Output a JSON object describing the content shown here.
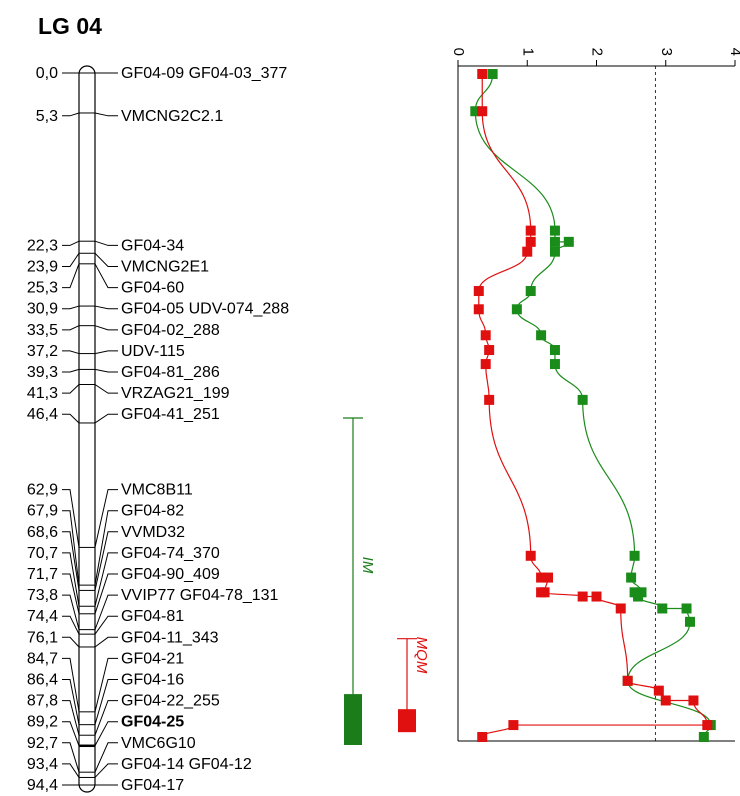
{
  "title": "LG 04",
  "chart_data": {
    "type": "line",
    "linkage_group": "LG 04",
    "markers": [
      {
        "pos": "0,0",
        "cm": 0.0,
        "label": "GF04-09  GF04-03_377"
      },
      {
        "pos": "5,3",
        "cm": 5.3,
        "label": "VMCNG2C2.1"
      },
      {
        "pos": "22,3",
        "cm": 22.3,
        "label": "GF04-34"
      },
      {
        "pos": "23,9",
        "cm": 23.9,
        "label": "VMCNG2E1"
      },
      {
        "pos": "25,3",
        "cm": 25.3,
        "label": "GF04-60"
      },
      {
        "pos": "30,9",
        "cm": 30.9,
        "label": "GF04-05  UDV-074_288"
      },
      {
        "pos": "33,5",
        "cm": 33.5,
        "label": "GF04-02_288"
      },
      {
        "pos": "37,2",
        "cm": 37.2,
        "label": "UDV-115"
      },
      {
        "pos": "39,3",
        "cm": 39.3,
        "label": "GF04-81_286"
      },
      {
        "pos": "41,3",
        "cm": 41.3,
        "label": "VRZAG21_199"
      },
      {
        "pos": "46,4",
        "cm": 46.4,
        "label": "GF04-41_251"
      },
      {
        "pos": "62,9",
        "cm": 62.9,
        "label": "VMC8B11"
      },
      {
        "pos": "67,9",
        "cm": 67.9,
        "label": "GF04-82"
      },
      {
        "pos": "68,6",
        "cm": 68.6,
        "label": "VVMD32"
      },
      {
        "pos": "70,7",
        "cm": 70.7,
        "label": "GF04-74_370"
      },
      {
        "pos": "71,7",
        "cm": 71.7,
        "label": "GF04-90_409"
      },
      {
        "pos": "73,8",
        "cm": 73.8,
        "label": "VVIP77  GF04-78_131"
      },
      {
        "pos": "74,4",
        "cm": 74.4,
        "label": "GF04-81"
      },
      {
        "pos": "76,1",
        "cm": 76.1,
        "label": "GF04-11_343"
      },
      {
        "pos": "84,7",
        "cm": 84.7,
        "label": "GF04-21"
      },
      {
        "pos": "86,4",
        "cm": 86.4,
        "label": "GF04-16"
      },
      {
        "pos": "87,8",
        "cm": 87.8,
        "label": "GF04-22_255"
      },
      {
        "pos": "89,2",
        "cm": 89.2,
        "label": "GF04-25",
        "bold": true
      },
      {
        "pos": "92,7",
        "cm": 92.7,
        "label": "VMC6G10"
      },
      {
        "pos": "93,4",
        "cm": 93.4,
        "label": "GF04-14  GF04-12"
      },
      {
        "pos": "94,4",
        "cm": 94.4,
        "label": "GF04-17"
      }
    ],
    "qtl_intervals": [
      {
        "label": "IM",
        "color": "#1a7d1a",
        "outer": [
          46.4,
          94.4
        ],
        "inner": [
          85.0,
          94.4
        ]
      },
      {
        "label": "MQM",
        "color": "#e01010",
        "outer": [
          75.0,
          94.4
        ],
        "inner": [
          87.0,
          92.7
        ]
      }
    ],
    "lod_axis": {
      "ticks": [
        "0",
        "1",
        "2",
        "3",
        "4"
      ],
      "range": [
        0,
        4
      ],
      "threshold": 2.85
    },
    "series": [
      {
        "key": "IM",
        "color": "#1a8c1a",
        "points": [
          [
            0.5,
            0.0
          ],
          [
            0.25,
            5.3
          ],
          [
            1.4,
            22.3
          ],
          [
            1.4,
            23.9
          ],
          [
            1.6,
            23.9
          ],
          [
            1.4,
            25.3
          ],
          [
            1.05,
            30.9
          ],
          [
            0.85,
            33.5
          ],
          [
            1.2,
            37.2
          ],
          [
            1.4,
            39.3
          ],
          [
            1.4,
            41.3
          ],
          [
            1.8,
            46.4
          ],
          [
            2.55,
            68.6
          ],
          [
            2.5,
            71.7
          ],
          [
            2.65,
            73.8
          ],
          [
            2.55,
            73.8
          ],
          [
            2.6,
            74.4
          ],
          [
            2.95,
            76.1
          ],
          [
            3.3,
            76.1
          ],
          [
            3.35,
            78.0
          ],
          [
            2.45,
            86.4
          ],
          [
            3.65,
            92.7
          ],
          [
            3.55,
            94.4
          ]
        ]
      },
      {
        "key": "MQM",
        "color": "#e01010",
        "points": [
          [
            0.35,
            0.0
          ],
          [
            0.35,
            5.3
          ],
          [
            1.05,
            22.3
          ],
          [
            1.05,
            23.9
          ],
          [
            1.0,
            25.3
          ],
          [
            0.3,
            30.9
          ],
          [
            0.3,
            33.5
          ],
          [
            0.4,
            37.2
          ],
          [
            0.45,
            39.3
          ],
          [
            0.4,
            41.3
          ],
          [
            0.45,
            46.4
          ],
          [
            1.05,
            68.6
          ],
          [
            1.2,
            71.7
          ],
          [
            1.3,
            71.7
          ],
          [
            1.25,
            73.8
          ],
          [
            1.2,
            73.8
          ],
          [
            1.8,
            74.4
          ],
          [
            2.0,
            74.4
          ],
          [
            2.35,
            76.1
          ],
          [
            2.45,
            86.4
          ],
          [
            2.9,
            87.8
          ],
          [
            3.0,
            89.2
          ],
          [
            3.4,
            89.2
          ],
          [
            3.6,
            92.7
          ],
          [
            0.8,
            92.7
          ],
          [
            0.35,
            94.4
          ]
        ]
      }
    ]
  }
}
